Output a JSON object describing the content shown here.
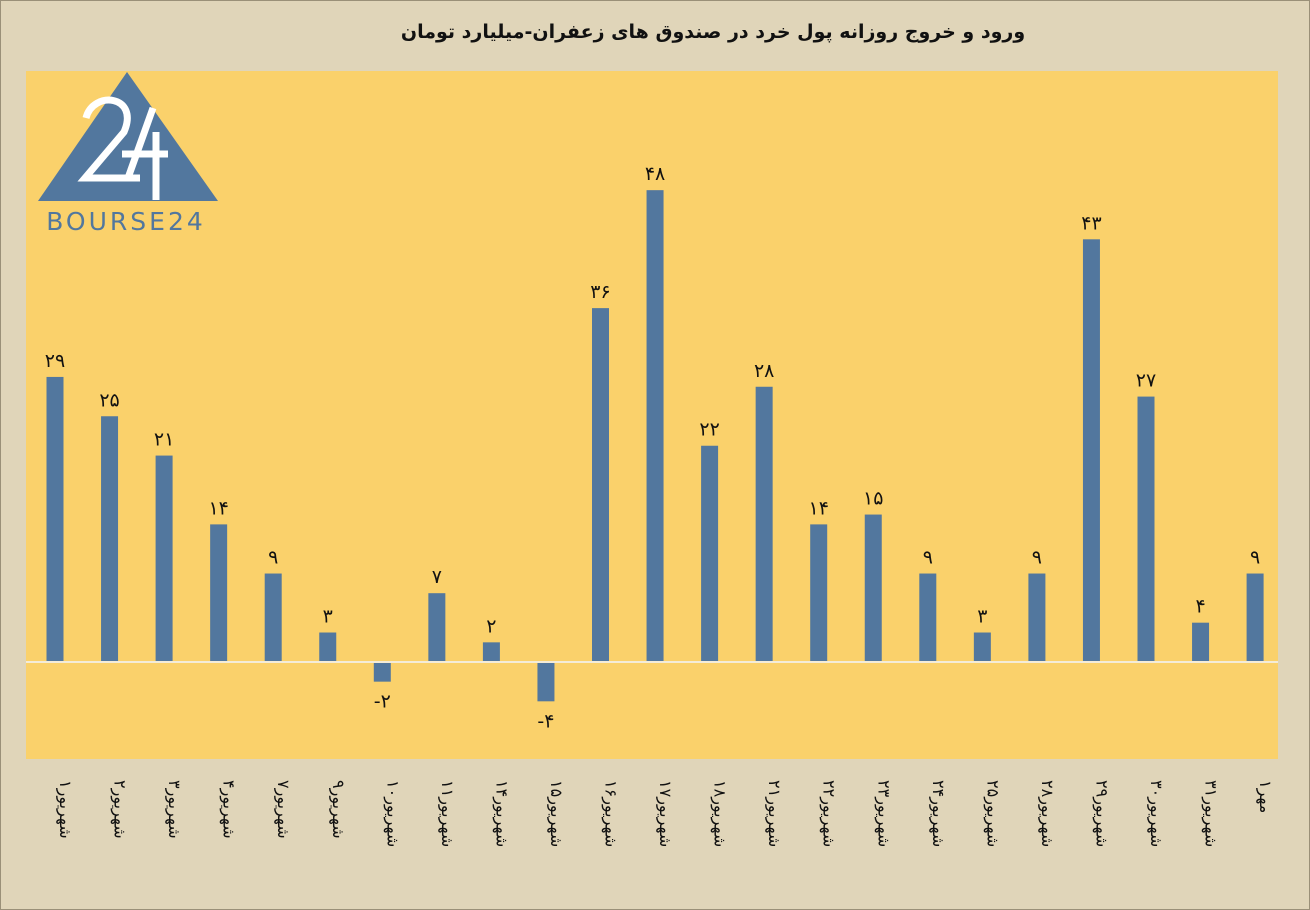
{
  "logo": {
    "text": "BOURSE24"
  },
  "chart_data": {
    "type": "bar",
    "title": "ورود و خروج روزانه پول خرد در صندوق های زعفران-میلیارد تومان",
    "categories": [
      "۱شهریور",
      "۲شهریور",
      "۳شهریور",
      "۴شهریور",
      "۷شهریور",
      "۹شهریور",
      "۱۰شهریور",
      "۱۱شهریور",
      "۱۴شهریور",
      "۱۵شهریور",
      "۱۶شهریور",
      "۱۷شهریور",
      "۱۸شهریور",
      "۲۱شهریور",
      "۲۲شهریور",
      "۲۳شهریور",
      "۲۴شهریور",
      "۲۵شهریور",
      "۲۸شهریور",
      "۲۹شهریور",
      "۳۰شهریور",
      "۳۱شهریور",
      "۱مهر"
    ],
    "values": [
      29,
      25,
      21,
      14,
      9,
      3,
      -2,
      7,
      2,
      -4,
      36,
      48,
      22,
      28,
      14,
      15,
      9,
      3,
      9,
      43,
      27,
      4,
      9
    ],
    "value_labels": [
      "۲۹",
      "۲۵",
      "۲۱",
      "۱۴",
      "۹",
      "۳",
      "-۲",
      "۷",
      "۲",
      "-۴",
      "۳۶",
      "۴۸",
      "۲۲",
      "۲۸",
      "۱۴",
      "۱۵",
      "۹",
      "۳",
      "۹",
      "۴۳",
      "۲۷",
      "۴",
      "۹"
    ],
    "ylim": [
      -10,
      60
    ],
    "grid": false,
    "legend": "none",
    "colors": {
      "bar": "#52779e",
      "plot_bg": "#fad16b",
      "page_bg": "#e0d5b9",
      "axis": "#f4ecd8",
      "logo": "#52779e"
    }
  }
}
